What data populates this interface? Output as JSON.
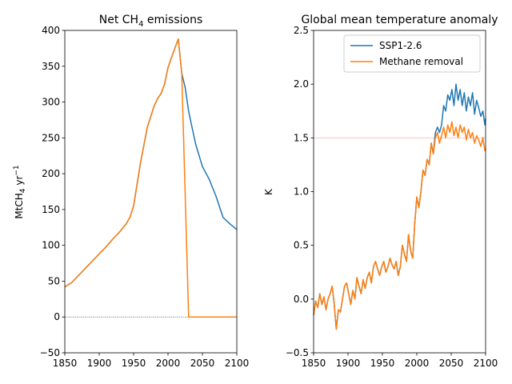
{
  "chart_data": [
    {
      "type": "line",
      "title": "Net CH",
      "title_sub": "4",
      "title_tail": " emissions",
      "xlabel": "",
      "ylabel": "MtCH",
      "ylabel_sub": "4",
      "ylabel_tail": " yr",
      "ylabel_sup": "−1",
      "xlim": [
        1850,
        2100
      ],
      "ylim": [
        -50,
        400
      ],
      "xticks": [
        "1850",
        "1900",
        "1950",
        "2000",
        "2050",
        "2100"
      ],
      "yticks": [
        "−50",
        "0",
        "50",
        "100",
        "150",
        "200",
        "250",
        "300",
        "350",
        "400"
      ],
      "reference_line": 0,
      "series": [
        {
          "name": "SSP1-2.6",
          "color": "#1f77b4",
          "x": [
            1850,
            1860,
            1870,
            1880,
            1890,
            1900,
            1910,
            1920,
            1930,
            1940,
            1945,
            1950,
            1955,
            1960,
            1965,
            1970,
            1975,
            1980,
            1985,
            1990,
            1995,
            2000,
            2005,
            2010,
            2015,
            2020,
            2025,
            2030,
            2040,
            2050,
            2060,
            2070,
            2080,
            2090,
            2100
          ],
          "y": [
            42,
            48,
            58,
            68,
            78,
            88,
            98,
            109,
            119,
            131,
            140,
            155,
            185,
            215,
            240,
            265,
            280,
            295,
            305,
            312,
            325,
            348,
            362,
            375,
            388,
            340,
            320,
            287,
            242,
            210,
            192,
            168,
            139,
            130,
            122
          ]
        },
        {
          "name": "Methane removal",
          "color": "#ff7f0e",
          "x": [
            1850,
            1860,
            1870,
            1880,
            1890,
            1900,
            1910,
            1920,
            1930,
            1940,
            1945,
            1950,
            1955,
            1960,
            1965,
            1970,
            1975,
            1980,
            1985,
            1990,
            1995,
            2000,
            2005,
            2010,
            2015,
            2020,
            2030,
            2040,
            2050,
            2060,
            2070,
            2080,
            2090,
            2100
          ],
          "y": [
            42,
            48,
            58,
            68,
            78,
            88,
            98,
            109,
            119,
            131,
            140,
            155,
            185,
            215,
            240,
            265,
            280,
            295,
            305,
            312,
            325,
            348,
            362,
            375,
            388,
            340,
            0,
            0,
            0,
            0,
            0,
            0,
            0,
            0
          ]
        }
      ]
    },
    {
      "type": "line",
      "title": "Global mean temperature anomaly",
      "xlabel": "",
      "ylabel": "K",
      "xlim": [
        1850,
        2100
      ],
      "ylim": [
        -0.5,
        2.5
      ],
      "xticks": [
        "1850",
        "1900",
        "1950",
        "2000",
        "2050",
        "2100"
      ],
      "yticks": [
        "−0.5",
        "0.0",
        "0.5",
        "1.0",
        "1.5",
        "2.0",
        "2.5"
      ],
      "reference_line": 1.5,
      "legend_position": "top-right",
      "series": [
        {
          "name": "SSP1-2.6",
          "color": "#1f77b4",
          "x": [
            1850,
            1853,
            1856,
            1859,
            1862,
            1865,
            1868,
            1871,
            1874,
            1877,
            1880,
            1883,
            1886,
            1889,
            1892,
            1895,
            1898,
            1901,
            1904,
            1907,
            1910,
            1913,
            1916,
            1919,
            1922,
            1925,
            1928,
            1931,
            1934,
            1937,
            1940,
            1943,
            1946,
            1949,
            1952,
            1955,
            1958,
            1961,
            1964,
            1967,
            1970,
            1973,
            1976,
            1979,
            1982,
            1985,
            1988,
            1991,
            1994,
            1997,
            2000,
            2003,
            2006,
            2009,
            2012,
            2015,
            2018,
            2021,
            2024,
            2027,
            2030,
            2033,
            2036,
            2039,
            2042,
            2045,
            2048,
            2051,
            2054,
            2057,
            2060,
            2063,
            2066,
            2069,
            2072,
            2075,
            2078,
            2081,
            2084,
            2087,
            2090,
            2093,
            2096,
            2099,
            2100
          ],
          "y": [
            -0.15,
            -0.02,
            -0.08,
            0.05,
            -0.05,
            0.02,
            -0.1,
            0.0,
            0.05,
            0.12,
            -0.05,
            -0.28,
            -0.1,
            -0.12,
            0.0,
            0.12,
            0.15,
            0.05,
            -0.05,
            0.08,
            0.0,
            0.2,
            0.12,
            0.05,
            0.18,
            0.1,
            0.2,
            0.25,
            0.15,
            0.3,
            0.35,
            0.28,
            0.22,
            0.3,
            0.35,
            0.25,
            0.3,
            0.38,
            0.32,
            0.28,
            0.35,
            0.22,
            0.3,
            0.5,
            0.42,
            0.35,
            0.6,
            0.45,
            0.38,
            0.7,
            0.95,
            0.85,
            1.0,
            1.2,
            1.15,
            1.3,
            1.25,
            1.45,
            1.35,
            1.55,
            1.6,
            1.55,
            1.62,
            1.8,
            1.75,
            1.9,
            1.85,
            1.95,
            1.8,
            2.0,
            1.85,
            1.95,
            1.8,
            1.92,
            1.75,
            1.88,
            1.8,
            1.92,
            1.72,
            1.85,
            1.78,
            1.7,
            1.75,
            1.62,
            1.68
          ]
        },
        {
          "name": "Methane removal",
          "color": "#ff7f0e",
          "x": [
            1850,
            1853,
            1856,
            1859,
            1862,
            1865,
            1868,
            1871,
            1874,
            1877,
            1880,
            1883,
            1886,
            1889,
            1892,
            1895,
            1898,
            1901,
            1904,
            1907,
            1910,
            1913,
            1916,
            1919,
            1922,
            1925,
            1928,
            1931,
            1934,
            1937,
            1940,
            1943,
            1946,
            1949,
            1952,
            1955,
            1958,
            1961,
            1964,
            1967,
            1970,
            1973,
            1976,
            1979,
            1982,
            1985,
            1988,
            1991,
            1994,
            1997,
            2000,
            2003,
            2006,
            2009,
            2012,
            2015,
            2018,
            2021,
            2024,
            2027,
            2030,
            2033,
            2036,
            2039,
            2042,
            2045,
            2048,
            2051,
            2054,
            2057,
            2060,
            2063,
            2066,
            2069,
            2072,
            2075,
            2078,
            2081,
            2084,
            2087,
            2090,
            2093,
            2096,
            2099,
            2100
          ],
          "y": [
            -0.15,
            -0.02,
            -0.08,
            0.05,
            -0.05,
            0.02,
            -0.1,
            0.0,
            0.05,
            0.12,
            -0.05,
            -0.28,
            -0.1,
            -0.12,
            0.0,
            0.12,
            0.15,
            0.05,
            -0.05,
            0.08,
            0.0,
            0.2,
            0.12,
            0.05,
            0.18,
            0.1,
            0.2,
            0.25,
            0.15,
            0.3,
            0.35,
            0.28,
            0.22,
            0.3,
            0.35,
            0.25,
            0.3,
            0.38,
            0.32,
            0.28,
            0.35,
            0.22,
            0.3,
            0.5,
            0.42,
            0.35,
            0.6,
            0.45,
            0.38,
            0.7,
            0.95,
            0.85,
            1.0,
            1.2,
            1.15,
            1.3,
            1.25,
            1.45,
            1.35,
            1.5,
            1.55,
            1.45,
            1.52,
            1.6,
            1.5,
            1.62,
            1.55,
            1.65,
            1.52,
            1.6,
            1.5,
            1.62,
            1.55,
            1.6,
            1.48,
            1.58,
            1.5,
            1.55,
            1.45,
            1.52,
            1.48,
            1.42,
            1.5,
            1.38,
            1.4
          ]
        }
      ]
    }
  ]
}
